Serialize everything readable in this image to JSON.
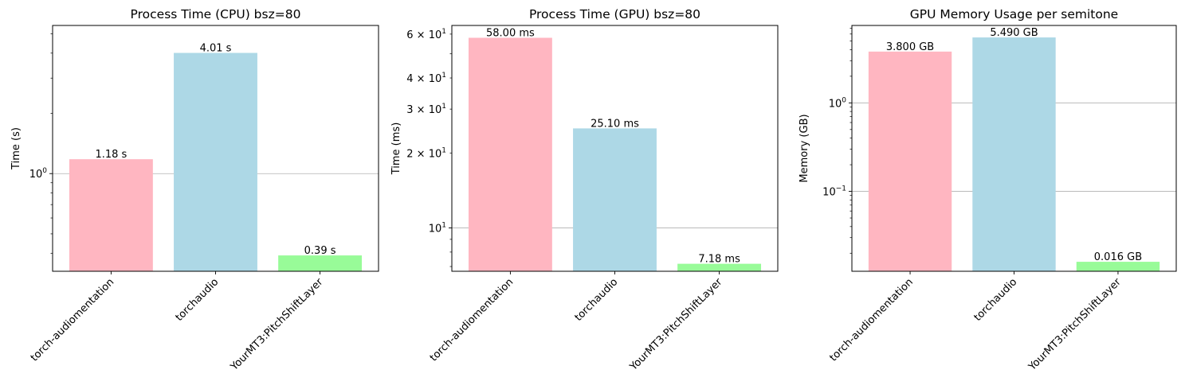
{
  "chart_data": [
    {
      "type": "bar",
      "title": "Process Time (CPU) bsz=80",
      "ylabel": "Time (s)",
      "yscale": "log",
      "ylim": [
        0.325,
        5.5
      ],
      "grid": "y-major",
      "categories": [
        "torch-audiomentation",
        "torchaudio",
        "YourMT3:PitchShiftLayer"
      ],
      "values": [
        1.18,
        4.01,
        0.39
      ],
      "data_labels": [
        "1.18 s",
        "4.01 s",
        "0.39 s"
      ],
      "colors": [
        "#ffb6c1",
        "#add8e6",
        "#98fb98"
      ],
      "major_ticks": [
        {
          "value": 1,
          "label_base": "10",
          "label_exp": "0"
        }
      ],
      "minor_ticks": [
        0.4,
        0.5,
        0.6,
        0.7,
        0.8,
        0.9,
        2,
        3,
        4,
        5
      ]
    },
    {
      "type": "bar",
      "title": "Process Time (GPU) bsz=80",
      "ylabel": "Time (ms)",
      "yscale": "log",
      "ylim": [
        6.7,
        65
      ],
      "grid": "y-major",
      "categories": [
        "torch-audiomentation",
        "torchaudio",
        "YourMT3:PitchShiftLayer"
      ],
      "values": [
        58.0,
        25.1,
        7.18
      ],
      "data_labels": [
        "58.00 ms",
        "25.10 ms",
        "7.18 ms"
      ],
      "colors": [
        "#ffb6c1",
        "#add8e6",
        "#98fb98"
      ],
      "major_ticks": [
        {
          "value": 10,
          "label_base": "10",
          "label_exp": "1"
        }
      ],
      "labeled_minor_ticks": [
        {
          "value": 20,
          "label_base": "2 × 10",
          "label_exp": "1"
        },
        {
          "value": 30,
          "label_base": "3 × 10",
          "label_exp": "1"
        },
        {
          "value": 40,
          "label_base": "4 × 10",
          "label_exp": "1"
        },
        {
          "value": 60,
          "label_base": "6 × 10",
          "label_exp": "1"
        }
      ],
      "minor_ticks": [
        7,
        8,
        9,
        50
      ]
    },
    {
      "type": "bar",
      "title": "GPU Memory Usage per semitone",
      "ylabel": "Memory (GB)",
      "yscale": "log",
      "ylim": [
        0.0125,
        7.5
      ],
      "grid": "y-major",
      "categories": [
        "torch-audiomentation",
        "torchaudio",
        "YourMT3:PitchShiftLayer"
      ],
      "values": [
        3.8,
        5.49,
        0.016
      ],
      "data_labels": [
        "3.800 GB",
        "5.490 GB",
        "0.016 GB"
      ],
      "colors": [
        "#ffb6c1",
        "#add8e6",
        "#98fb98"
      ],
      "major_ticks": [
        {
          "value": 0.1,
          "label_base": "10",
          "label_exp": "−1"
        },
        {
          "value": 1,
          "label_base": "10",
          "label_exp": "0"
        }
      ],
      "minor_ticks": [
        0.02,
        0.03,
        0.04,
        0.05,
        0.06,
        0.07,
        0.08,
        0.09,
        0.2,
        0.3,
        0.4,
        0.5,
        0.6,
        0.7,
        0.8,
        0.9,
        2,
        3,
        4,
        5,
        6,
        7
      ]
    }
  ]
}
